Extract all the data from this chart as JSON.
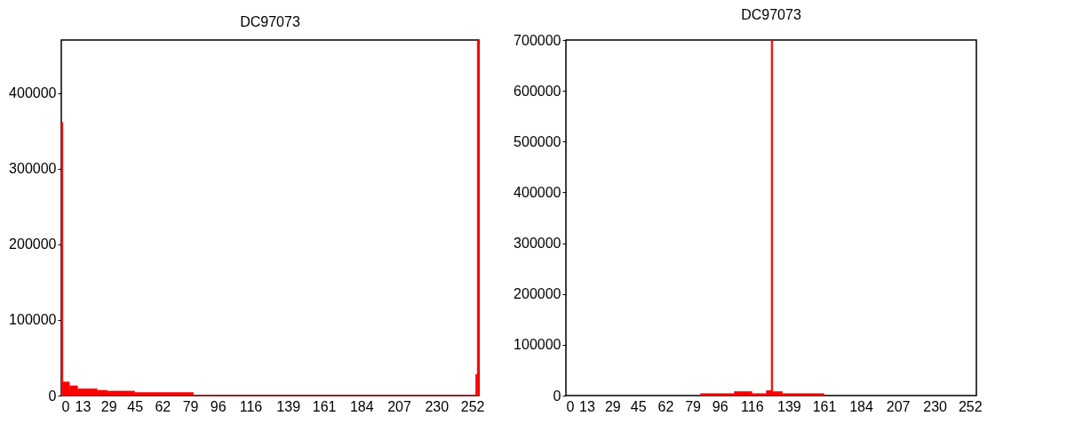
{
  "chart_data": [
    {
      "type": "histogram",
      "title": "DC97073",
      "color": "#ff0000",
      "xlim": [
        0,
        256
      ],
      "xticks": [
        0,
        13,
        29,
        45,
        62,
        79,
        96,
        116,
        139,
        161,
        184,
        207,
        230,
        252
      ],
      "ylim": [
        0,
        470000
      ],
      "yticks": [
        0,
        100000,
        200000,
        300000,
        400000
      ],
      "bins": [
        0,
        1,
        5,
        10,
        22,
        28,
        45,
        63,
        81,
        254,
        255,
        256
      ],
      "values": [
        361000,
        18000,
        13000,
        9000,
        7000,
        6000,
        4000,
        4000,
        0,
        28000,
        470000
      ]
    },
    {
      "type": "histogram",
      "title": "DC97073",
      "color": "#ff0000",
      "xlim": [
        0,
        256
      ],
      "xticks": [
        0,
        13,
        29,
        45,
        62,
        79,
        96,
        116,
        139,
        161,
        184,
        207,
        230,
        252
      ],
      "ylim": [
        0,
        700000
      ],
      "yticks": [
        0,
        100000,
        200000,
        300000,
        400000,
        500000,
        600000,
        700000
      ],
      "bins": [
        84,
        105,
        116,
        125,
        128,
        129,
        135,
        161
      ],
      "values": [
        4000,
        8000,
        4000,
        10000,
        700000,
        8000,
        4000
      ]
    }
  ]
}
